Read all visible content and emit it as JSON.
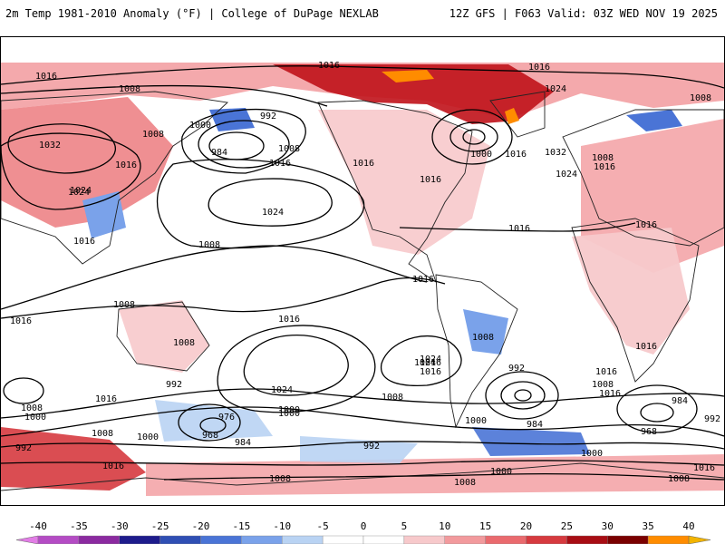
{
  "header": {
    "title": "2m Temp 1981-2010 Anomaly (°F) | College of DuPage NEXLAB",
    "run_info": "12Z GFS | F063 Valid: 03Z WED NOV 19 2025"
  },
  "map": {
    "projection": "global",
    "pressure_labels": [
      "1016",
      "1008",
      "992",
      "1000",
      "1016",
      "1024",
      "1016",
      "1032",
      "1016",
      "1008",
      "1016",
      "1024",
      "1016",
      "1016",
      "984",
      "1008",
      "1016",
      "1000",
      "1024",
      "1008",
      "1016",
      "1016",
      "1016",
      "1008",
      "1024",
      "1016",
      "1032",
      "1024",
      "1016",
      "1016",
      "1008",
      "1016",
      "1008",
      "1008",
      "1016",
      "1024",
      "1016",
      "1008",
      "1016",
      "1000",
      "1024",
      "992",
      "976",
      "968",
      "984",
      "1000",
      "1008",
      "992",
      "1000",
      "1016",
      "1008",
      "1000",
      "1008",
      "1024",
      "1016",
      "1008",
      "992",
      "984",
      "1016",
      "1008",
      "1000",
      "984",
      "968",
      "992",
      "1016",
      "1008",
      "1000",
      "992",
      "1000",
      "1008",
      "1016"
    ],
    "colors": {
      "land_outline": "#222222",
      "isobar": "#000000",
      "warm": "#e8545a",
      "cold": "#4f79d8"
    }
  },
  "colorbar": {
    "ticks": [
      "-40",
      "-35",
      "-30",
      "-25",
      "-20",
      "-15",
      "-10",
      "-5",
      "0",
      "5",
      "10",
      "15",
      "20",
      "25",
      "30",
      "35",
      "40"
    ],
    "colors": [
      "#e27de6",
      "#b44cc4",
      "#8b2aa0",
      "#1e1c8c",
      "#2f4fb4",
      "#4a74d6",
      "#7aa2ea",
      "#b9d3f3",
      "#ffffff",
      "#ffffff",
      "#f7c9cb",
      "#f29a9d",
      "#ea6a6e",
      "#d63a3f",
      "#a80d14",
      "#7a0000",
      "#ff8c00",
      "#f2b400"
    ]
  }
}
